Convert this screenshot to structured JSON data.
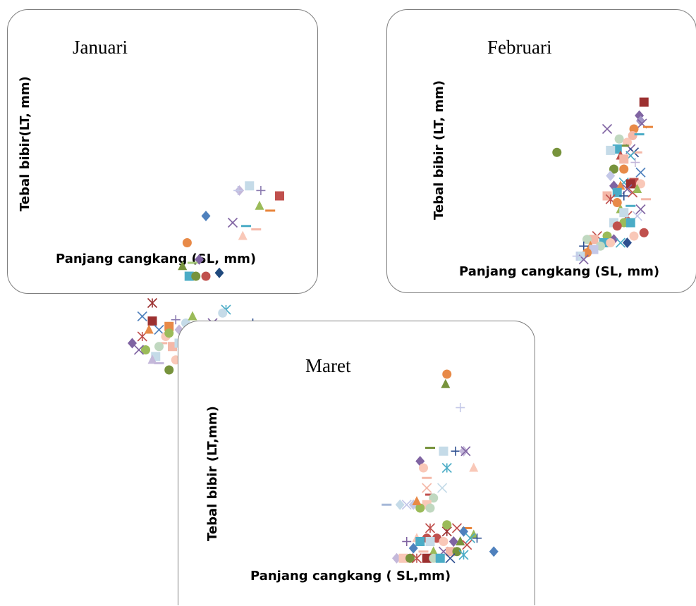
{
  "chart_data": [
    {
      "type": "scatter",
      "title": "Januari",
      "xlabel": "Panjang cangkang (SL, mm)",
      "ylabel": "Tebal bibir(LT, mm)",
      "points": [
        [
          90,
          80,
          "square",
          "#c0504d"
        ],
        [
          76,
          58,
          "dash",
          "#e8843a"
        ],
        [
          60,
          65,
          "triangle",
          "#9bbb59"
        ],
        [
          45,
          95,
          "square",
          "#c5dbe8"
        ],
        [
          30,
          88,
          "diamond",
          "#c4b8da"
        ],
        [
          62,
          88,
          "plus",
          "#8a7ab0"
        ],
        [
          28,
          88,
          "plus",
          "#c4c8e8"
        ],
        [
          -20,
          50,
          "diamond",
          "#4f81bd"
        ],
        [
          20,
          40,
          "x",
          "#8064a2"
        ],
        [
          40,
          35,
          "dash",
          "#4bacc6"
        ],
        [
          55,
          30,
          "dash",
          "#f4b8a8"
        ],
        [
          35,
          20,
          "triangle",
          "#f9c8b8"
        ],
        [
          -48,
          10,
          "circle",
          "#e88a48"
        ],
        [
          -30,
          -15,
          "diamond",
          "#8064a2"
        ],
        [
          -55,
          -25,
          "triangle",
          "#77933c"
        ],
        [
          -40,
          -20,
          "dash",
          "#a6c97a"
        ],
        [
          -45,
          -40,
          "square",
          "#4bacc6"
        ],
        [
          -20,
          -40,
          "circle",
          "#c0504d"
        ],
        [
          -35,
          -40,
          "circle",
          "#77933c"
        ],
        [
          0,
          -35,
          "diamond",
          "#1f497d"
        ],
        [
          -100,
          -80,
          "star",
          "#9c3030"
        ],
        [
          10,
          -90,
          "star",
          "#4bacc6"
        ],
        [
          50,
          -110,
          "plus",
          "#2e5090"
        ],
        [
          -100,
          -107,
          "square",
          "#9c3030"
        ],
        [
          -75,
          -115,
          "square",
          "#e88a48"
        ],
        [
          -90,
          -120,
          "x",
          "#4f81bd"
        ],
        [
          -130,
          -140,
          "diamond",
          "#8064a2"
        ],
        [
          -115,
          -130,
          "star",
          "#c0504d"
        ],
        [
          -110,
          -150,
          "circle",
          "#9bbb59"
        ],
        [
          -95,
          -160,
          "square",
          "#c5dbe8"
        ],
        [
          -80,
          -130,
          "circle",
          "#f9c8b8"
        ],
        [
          -70,
          -145,
          "square",
          "#f4b8a8"
        ],
        [
          -60,
          -120,
          "diamond",
          "#c4b8da"
        ],
        [
          -50,
          -110,
          "circle",
          "#c5dbe8"
        ],
        [
          -40,
          -100,
          "triangle",
          "#9bbb59"
        ],
        [
          -30,
          -150,
          "circle",
          "#c0d8c0"
        ],
        [
          -20,
          -130,
          "square",
          "#c0504d"
        ],
        [
          -10,
          -110,
          "x",
          "#8064a2"
        ],
        [
          0,
          -125,
          "circle",
          "#e88a48"
        ],
        [
          10,
          -140,
          "square",
          "#4bacc6"
        ],
        [
          20,
          -120,
          "circle",
          "#77933c"
        ],
        [
          -65,
          -165,
          "circle",
          "#f9c8b8"
        ],
        [
          -55,
          -155,
          "x",
          "#4bacc6"
        ],
        [
          -85,
          -140,
          "dash",
          "#f4b8a8"
        ],
        [
          -45,
          -140,
          "circle",
          "#c0d8c0"
        ],
        [
          -100,
          -165,
          "triangle",
          "#c4b8da"
        ],
        [
          -75,
          -180,
          "circle",
          "#77933c"
        ],
        [
          -50,
          -175,
          "square",
          "#4bacc6"
        ],
        [
          -25,
          -185,
          "x",
          "#a6b8d8"
        ],
        [
          -35,
          -160,
          "plus",
          "#2e5090"
        ],
        [
          -5,
          -160,
          "square",
          "#f4b8a8"
        ],
        [
          15,
          -150,
          "circle",
          "#c0504d"
        ],
        [
          -120,
          -150,
          "x",
          "#8064a2"
        ],
        [
          -90,
          -145,
          "circle",
          "#c0d8c0"
        ],
        [
          -60,
          -140,
          "square",
          "#c5dbe8"
        ],
        [
          -75,
          -125,
          "circle",
          "#9bbb59"
        ],
        [
          -105,
          -120,
          "triangle",
          "#e88a48"
        ],
        [
          -90,
          -170,
          "dash",
          "#c4b8da"
        ],
        [
          -65,
          -105,
          "plus",
          "#8a7ab0"
        ],
        [
          -115,
          -100,
          "x",
          "#4f81bd"
        ],
        [
          -40,
          -130,
          "square",
          "#9c3030"
        ],
        [
          5,
          -95,
          "circle",
          "#c5dbe8"
        ],
        [
          -30,
          -115,
          "dash",
          "#8064a2"
        ]
      ]
    },
    {
      "type": "scatter",
      "title": "Februari",
      "xlabel": "Panjang cangkang (SL, mm)",
      "ylabel": "Tebal bibir (LT, mm)",
      "points": [
        [
          115,
          220,
          "square",
          "#9c3030"
        ],
        [
          108,
          200,
          "diamond",
          "#8064a2"
        ],
        [
          110,
          192,
          "diamond",
          "#a094c4"
        ],
        [
          112,
          188,
          "x",
          "#8064a2"
        ],
        [
          121,
          183,
          "dash",
          "#e8843a"
        ],
        [
          100,
          180,
          "circle",
          "#e88a48"
        ],
        [
          60,
          180,
          "x",
          "#8064a2"
        ],
        [
          98,
          170,
          "circle",
          "#f4b8a8"
        ],
        [
          78,
          165,
          "circle",
          "#c0d8c0"
        ],
        [
          108,
          172,
          "dash",
          "#4bacc6"
        ],
        [
          90,
          160,
          "circle",
          "#f9c8b8"
        ],
        [
          95,
          150,
          "x",
          "#8064a2"
        ],
        [
          85,
          155,
          "dash",
          "#77933c"
        ],
        [
          100,
          145,
          "x",
          "#2e5090"
        ],
        [
          105,
          145,
          "dash",
          "#f4b8a8"
        ],
        [
          75,
          150,
          "square",
          "#4bacc6"
        ],
        [
          65,
          148,
          "square",
          "#c5dbe8"
        ],
        [
          -15,
          145,
          "circle",
          "#77933c"
        ],
        [
          80,
          140,
          "triangle",
          "#c0504d"
        ],
        [
          95,
          140,
          "x",
          "#4bacc6"
        ],
        [
          85,
          135,
          "square",
          "#f4b8a8"
        ],
        [
          102,
          130,
          "plus",
          "#c4b8da"
        ],
        [
          70,
          120,
          "circle",
          "#77933c"
        ],
        [
          85,
          120,
          "circle",
          "#e88a48"
        ],
        [
          65,
          110,
          "diamond",
          "#c4c8e8"
        ],
        [
          110,
          115,
          "x",
          "#4f81bd"
        ],
        [
          85,
          100,
          "x",
          "#4bacc6"
        ],
        [
          100,
          100,
          "square",
          "#c0504d"
        ],
        [
          95,
          98,
          "square",
          "#9c3030"
        ],
        [
          110,
          98,
          "circle",
          "#f9c8b8"
        ],
        [
          70,
          95,
          "diamond",
          "#8064a2"
        ],
        [
          80,
          95,
          "triangle",
          "#e88a48"
        ],
        [
          90,
          90,
          "x",
          "#8064a2"
        ],
        [
          75,
          85,
          "square",
          "#4bacc6"
        ],
        [
          60,
          80,
          "square",
          "#f4b8a8"
        ],
        [
          85,
          80,
          "plus",
          "#2e5090"
        ],
        [
          98,
          85,
          "x",
          "#c0504d"
        ],
        [
          105,
          90,
          "triangle",
          "#9bbb59"
        ],
        [
          118,
          75,
          "dash",
          "#f4b8a8"
        ],
        [
          65,
          75,
          "star",
          "#c0504d"
        ],
        [
          80,
          60,
          "triangle",
          "#9bbb59"
        ],
        [
          90,
          50,
          "star",
          "#c0504d"
        ],
        [
          105,
          50,
          "x",
          "#c4c8e8"
        ],
        [
          70,
          40,
          "square",
          "#c5dbe8"
        ],
        [
          85,
          40,
          "circle",
          "#9bbb59"
        ],
        [
          95,
          40,
          "square",
          "#4bacc6"
        ],
        [
          75,
          35,
          "circle",
          "#c0504d"
        ],
        [
          115,
          25,
          "circle",
          "#c0504d"
        ],
        [
          100,
          20,
          "circle",
          "#f9c8b8"
        ],
        [
          60,
          20,
          "circle",
          "#9bbb59"
        ],
        [
          45,
          20,
          "x",
          "#c0504d"
        ],
        [
          40,
          15,
          "square",
          "#f4b8a8"
        ],
        [
          30,
          15,
          "circle",
          "#c0d8c0"
        ],
        [
          55,
          10,
          "square",
          "#4bacc6"
        ],
        [
          70,
          15,
          "diamond",
          "#8064a2"
        ],
        [
          65,
          10,
          "circle",
          "#f9c8b8"
        ],
        [
          80,
          10,
          "x",
          "#4bacc6"
        ],
        [
          90,
          10,
          "diamond",
          "#2e5090"
        ],
        [
          35,
          5,
          "triangle",
          "#e88a48"
        ],
        [
          50,
          5,
          "circle",
          "#c0d8c0"
        ],
        [
          25,
          5,
          "plus",
          "#2e5090"
        ],
        [
          40,
          0,
          "square",
          "#c4c8e8"
        ],
        [
          30,
          -5,
          "circle",
          "#e88a48"
        ],
        [
          20,
          -10,
          "square",
          "#c5dbe8"
        ],
        [
          25,
          -15,
          "x",
          "#8064a2"
        ],
        [
          15,
          -10,
          "plus",
          "#c4c8e8"
        ],
        [
          85,
          55,
          "square",
          "#c5dbe8"
        ],
        [
          75,
          70,
          "circle",
          "#e88a48"
        ],
        [
          95,
          65,
          "dash",
          "#4bacc6"
        ],
        [
          110,
          60,
          "x",
          "#8064a2"
        ]
      ]
    },
    {
      "type": "scatter",
      "title": "Maret",
      "xlabel": "Panjang cangkang ( SL,mm)",
      "ylabel": "Tebal bibir (LT,mm)",
      "points": [
        [
          85,
          300,
          "circle",
          "#e88a48"
        ],
        [
          83,
          285,
          "triangle",
          "#77933c"
        ],
        [
          105,
          250,
          "plus",
          "#c4c8e8"
        ],
        [
          60,
          190,
          "dash",
          "#77933c"
        ],
        [
          80,
          185,
          "square",
          "#c5dbe8"
        ],
        [
          98,
          185,
          "plus",
          "#2e5090"
        ],
        [
          110,
          185,
          "diamond",
          "#c4b8da"
        ],
        [
          113,
          185,
          "x",
          "#8064a2"
        ],
        [
          45,
          170,
          "diamond",
          "#8064a2"
        ],
        [
          50,
          160,
          "circle",
          "#f9c8b8"
        ],
        [
          85,
          160,
          "star",
          "#4bacc6"
        ],
        [
          125,
          160,
          "triangle",
          "#f9c8b8"
        ],
        [
          55,
          145,
          "dash",
          "#f4b8a8"
        ],
        [
          55,
          130,
          "x",
          "#f4b8a8"
        ],
        [
          78,
          130,
          "x",
          "#c5dbe8"
        ],
        [
          60,
          120,
          "dash",
          "#c0504d"
        ],
        [
          65,
          115,
          "circle",
          "#c0d8c0"
        ],
        [
          35,
          105,
          "diamond",
          "#c4c8e8"
        ],
        [
          25,
          105,
          "x",
          "#c4c8e8"
        ],
        [
          -5,
          105,
          "dash",
          "#a6b8d8"
        ],
        [
          15,
          105,
          "diamond",
          "#c5dbe8"
        ],
        [
          55,
          105,
          "square",
          "#f9c8b8"
        ],
        [
          45,
          100,
          "circle",
          "#9bbb59"
        ],
        [
          40,
          110,
          "triangle",
          "#e88a48"
        ],
        [
          60,
          100,
          "circle",
          "#c0d8c0"
        ],
        [
          100,
          70,
          "x",
          "#c0504d"
        ],
        [
          115,
          70,
          "dash",
          "#e8843a"
        ],
        [
          85,
          65,
          "star",
          "#9c3030"
        ],
        [
          110,
          65,
          "diamond",
          "#4f81bd"
        ],
        [
          125,
          60,
          "triangle",
          "#9bbb59"
        ],
        [
          120,
          55,
          "x",
          "#4bacc6"
        ],
        [
          130,
          55,
          "plus",
          "#2e5090"
        ],
        [
          40,
          55,
          "triangle",
          "#f9c8b8"
        ],
        [
          55,
          55,
          "circle",
          "#c0504d"
        ],
        [
          70,
          55,
          "circle",
          "#c0504d"
        ],
        [
          25,
          50,
          "plus",
          "#8064a2"
        ],
        [
          45,
          50,
          "square",
          "#4bacc6"
        ],
        [
          60,
          50,
          "square",
          "#c5dbe8"
        ],
        [
          80,
          50,
          "circle",
          "#f9c8b8"
        ],
        [
          95,
          50,
          "diamond",
          "#8064a2"
        ],
        [
          105,
          50,
          "triangle",
          "#77933c"
        ],
        [
          115,
          45,
          "x",
          "#c0504d"
        ],
        [
          35,
          40,
          "diamond",
          "#4f81bd"
        ],
        [
          50,
          35,
          "dash",
          "#f4b8a8"
        ],
        [
          65,
          35,
          "triangle",
          "#9bbb59"
        ],
        [
          80,
          35,
          "x",
          "#8064a2"
        ],
        [
          90,
          35,
          "square",
          "#f4b8a8"
        ],
        [
          100,
          35,
          "circle",
          "#77933c"
        ],
        [
          110,
          30,
          "star",
          "#4bacc6"
        ],
        [
          10,
          25,
          "diamond",
          "#c4b8da"
        ],
        [
          20,
          25,
          "square",
          "#f9c8b8"
        ],
        [
          30,
          25,
          "circle",
          "#77933c"
        ],
        [
          40,
          25,
          "star",
          "#c0504d"
        ],
        [
          55,
          25,
          "square",
          "#9c3030"
        ],
        [
          65,
          25,
          "circle",
          "#c0d8c0"
        ],
        [
          75,
          25,
          "square",
          "#4bacc6"
        ],
        [
          90,
          25,
          "x",
          "#2e5090"
        ],
        [
          155,
          35,
          "diamond",
          "#4f81bd"
        ],
        [
          60,
          70,
          "star",
          "#c0504d"
        ],
        [
          85,
          75,
          "circle",
          "#9bbb59"
        ]
      ]
    }
  ]
}
